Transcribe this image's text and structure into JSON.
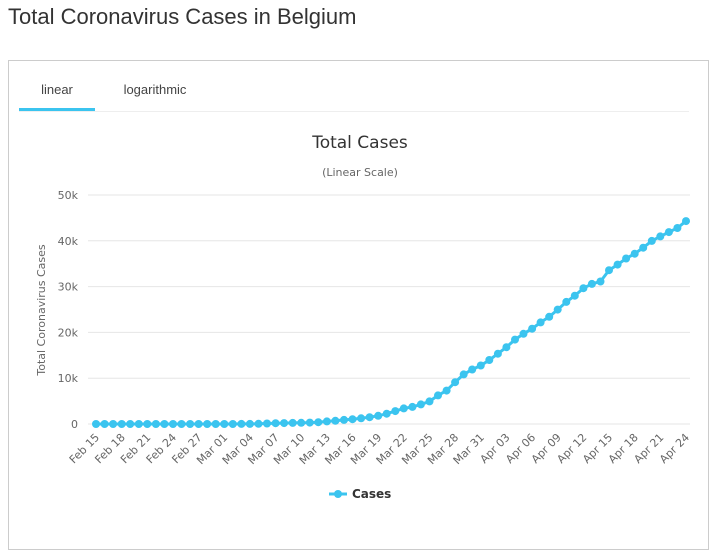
{
  "page": {
    "title": "Total Coronavirus Cases in Belgium"
  },
  "tabs": [
    {
      "label": "linear",
      "active": true
    },
    {
      "label": "logarithmic",
      "active": false
    }
  ],
  "colors": {
    "series": "#3bc4ef",
    "tab_active": "#3bc4ef",
    "grid": "#e6e6e6"
  },
  "chart_data": {
    "type": "line",
    "title": "Total Cases",
    "subtitle": "(Linear Scale)",
    "ylabel": "Total Coronavirus Cases",
    "xlabel": "",
    "ylim": [
      0,
      50000
    ],
    "y_ticks": [
      0,
      10000,
      20000,
      30000,
      40000,
      50000
    ],
    "y_tick_labels": [
      "0",
      "10k",
      "20k",
      "30k",
      "40k",
      "50k"
    ],
    "x_tick_labels": [
      "Feb 15",
      "Feb 18",
      "Feb 21",
      "Feb 24",
      "Feb 27",
      "Mar 01",
      "Mar 04",
      "Mar 07",
      "Mar 10",
      "Mar 13",
      "Mar 16",
      "Mar 19",
      "Mar 22",
      "Mar 25",
      "Mar 28",
      "Mar 31",
      "Apr 03",
      "Apr 06",
      "Apr 09",
      "Apr 12",
      "Apr 15",
      "Apr 18",
      "Apr 21",
      "Apr 24"
    ],
    "legend": "bottom-center",
    "grid": true,
    "x": [
      "Feb 15",
      "Feb 16",
      "Feb 17",
      "Feb 18",
      "Feb 19",
      "Feb 20",
      "Feb 21",
      "Feb 22",
      "Feb 23",
      "Feb 24",
      "Feb 25",
      "Feb 26",
      "Feb 27",
      "Feb 28",
      "Feb 29",
      "Mar 01",
      "Mar 02",
      "Mar 03",
      "Mar 04",
      "Mar 05",
      "Mar 06",
      "Mar 07",
      "Mar 08",
      "Mar 09",
      "Mar 10",
      "Mar 11",
      "Mar 12",
      "Mar 13",
      "Mar 14",
      "Mar 15",
      "Mar 16",
      "Mar 17",
      "Mar 18",
      "Mar 19",
      "Mar 20",
      "Mar 21",
      "Mar 22",
      "Mar 23",
      "Mar 24",
      "Mar 25",
      "Mar 26",
      "Mar 27",
      "Mar 28",
      "Mar 29",
      "Mar 30",
      "Mar 31",
      "Apr 01",
      "Apr 02",
      "Apr 03",
      "Apr 04",
      "Apr 05",
      "Apr 06",
      "Apr 07",
      "Apr 08",
      "Apr 09",
      "Apr 10",
      "Apr 11",
      "Apr 12",
      "Apr 13",
      "Apr 14",
      "Apr 15",
      "Apr 16",
      "Apr 17",
      "Apr 18",
      "Apr 19",
      "Apr 20",
      "Apr 21",
      "Apr 22",
      "Apr 23",
      "Apr 24"
    ],
    "series": [
      {
        "name": "Cases",
        "values": [
          1,
          1,
          1,
          1,
          1,
          1,
          1,
          1,
          1,
          1,
          1,
          1,
          1,
          1,
          1,
          2,
          8,
          13,
          23,
          50,
          109,
          169,
          200,
          239,
          267,
          314,
          399,
          559,
          689,
          886,
          1058,
          1243,
          1486,
          1795,
          2257,
          2815,
          3401,
          3743,
          4269,
          4937,
          6235,
          7284,
          9134,
          10836,
          11899,
          12775,
          13964,
          15348,
          16770,
          18431,
          19691,
          20814,
          22194,
          23403,
          24983,
          26667,
          28018,
          29647,
          30589,
          31119,
          33573,
          34809,
          36138,
          37183,
          38496,
          39983,
          40956,
          41889,
          42797,
          44293
        ]
      }
    ]
  }
}
